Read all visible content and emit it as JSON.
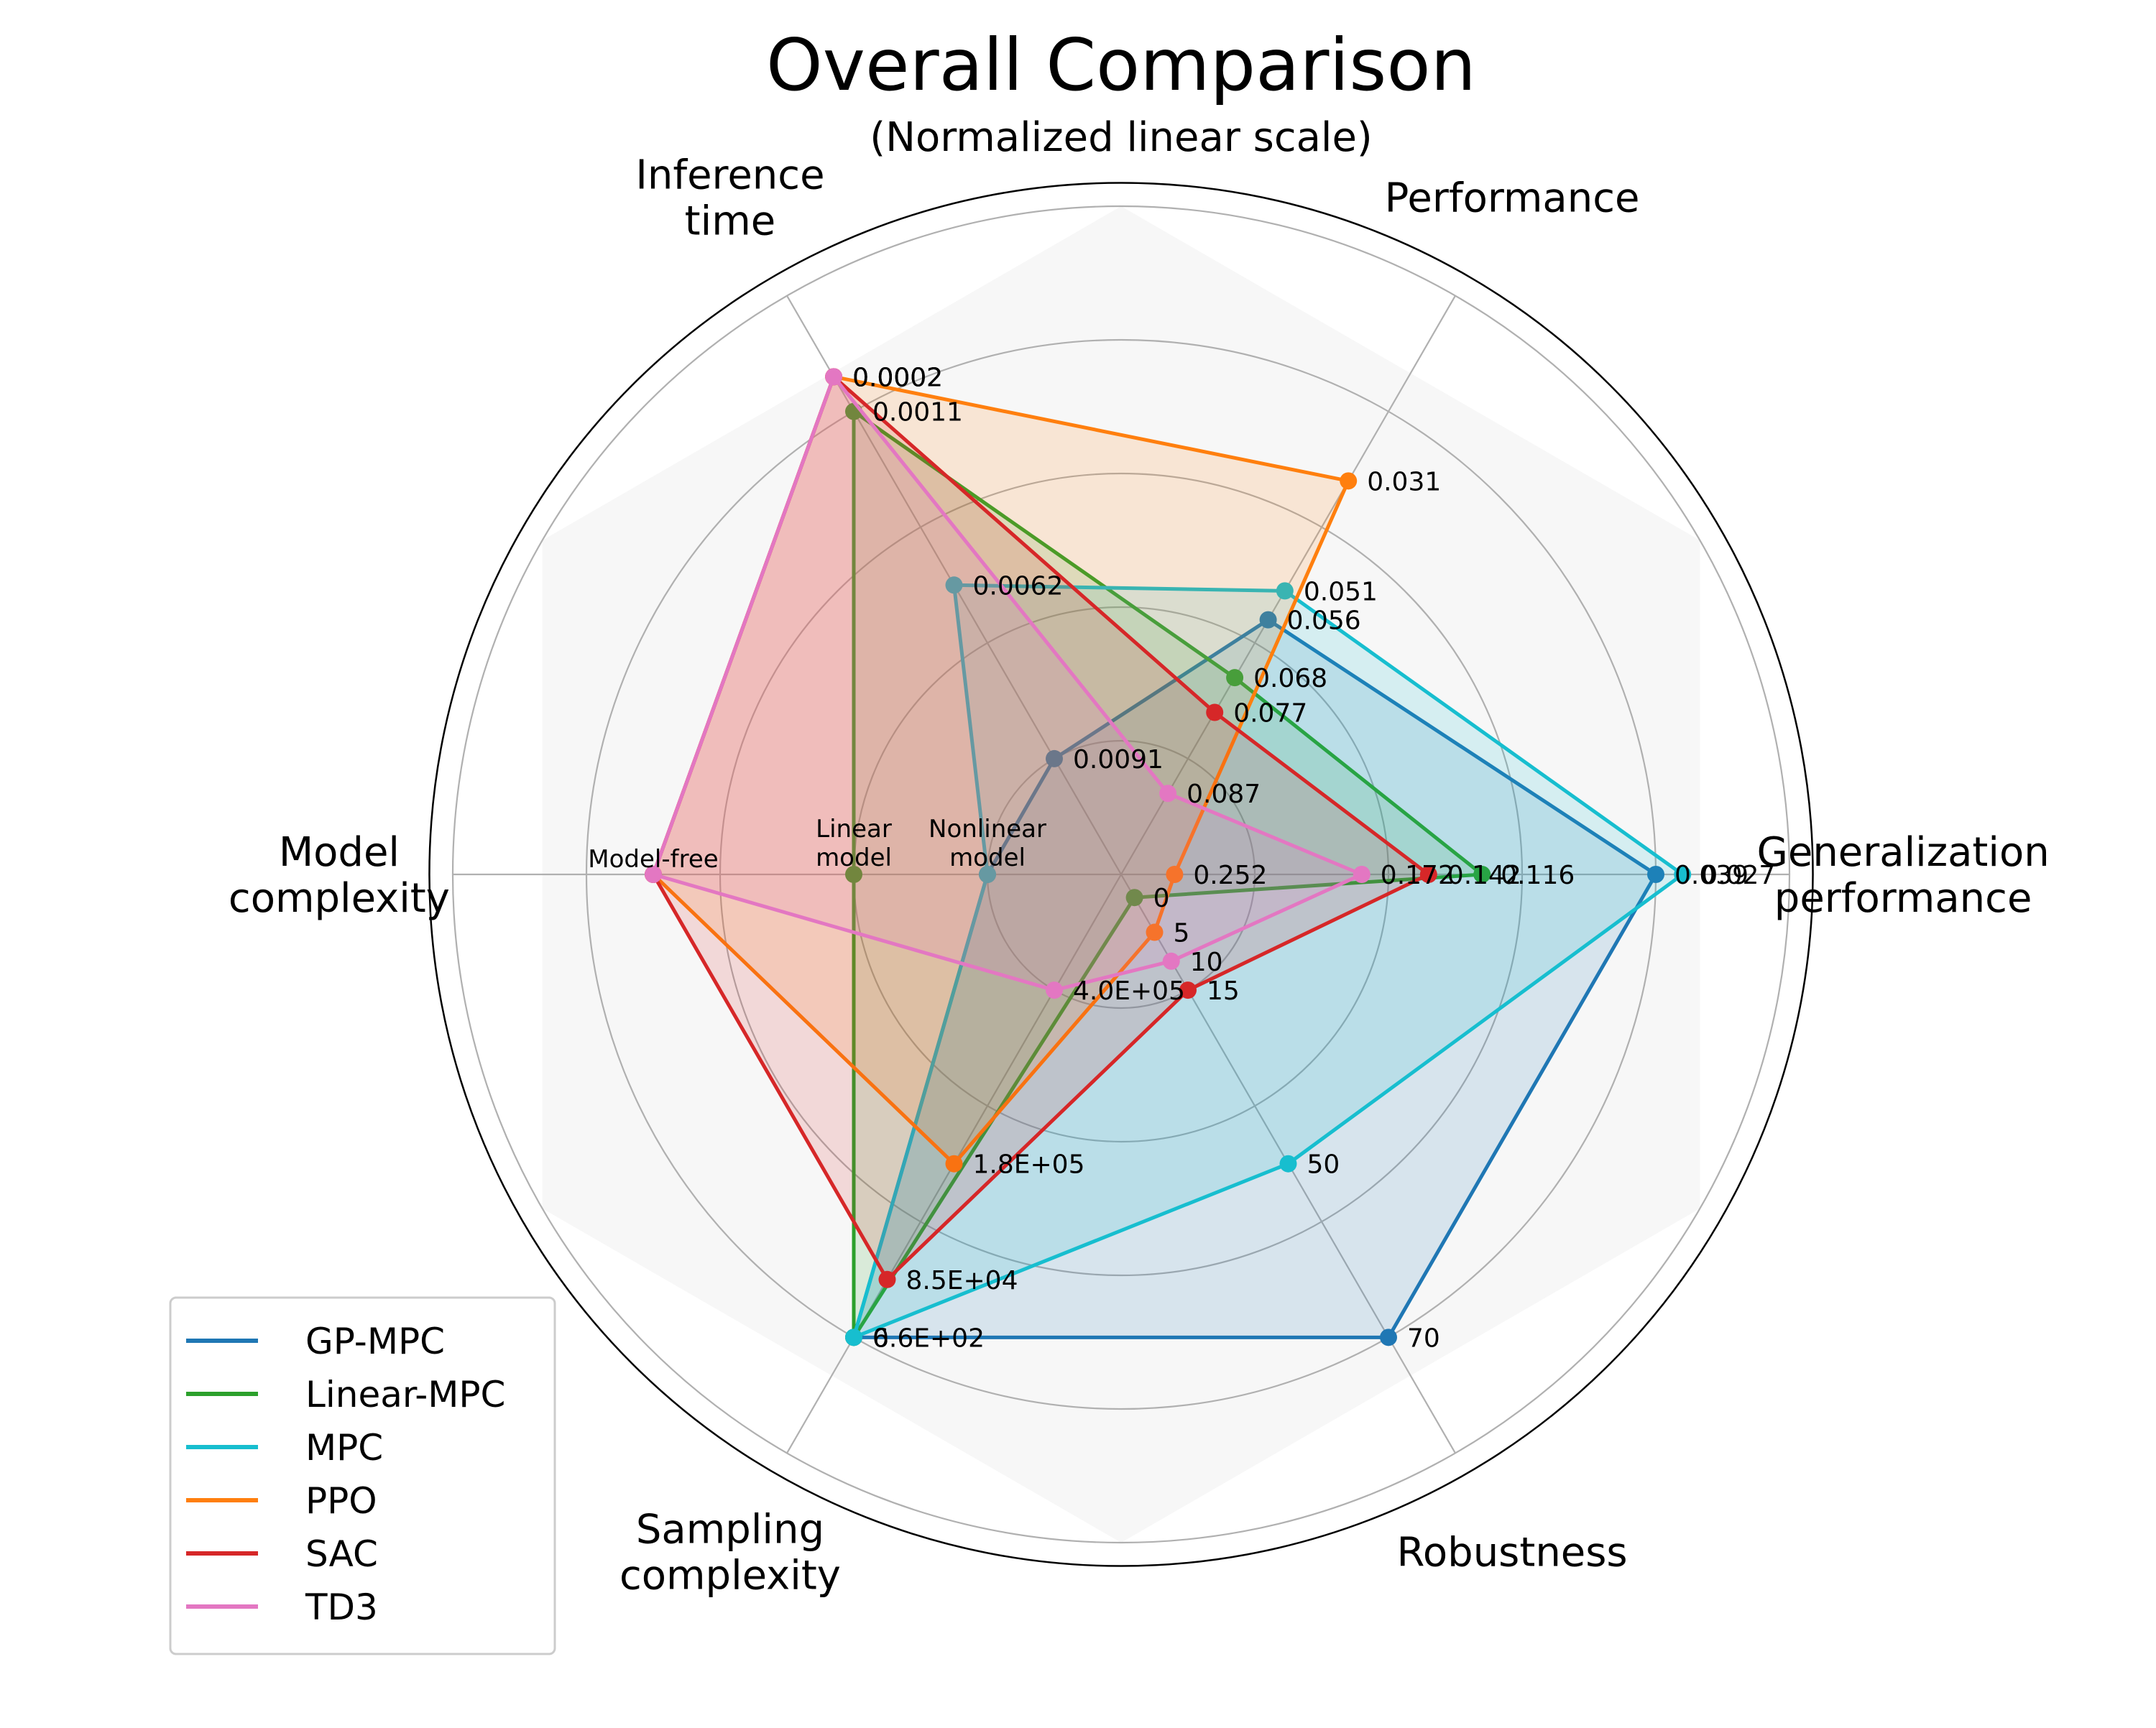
{
  "chart_data": {
    "type": "radar",
    "title": "Overall Comparison",
    "subtitle": "(Normalized linear scale)",
    "axes": [
      {
        "label": "Performance"
      },
      {
        "label": "Generalization\nperformance"
      },
      {
        "label": "Robustness"
      },
      {
        "label": "Sampling\ncomplexity"
      },
      {
        "label": "Model\ncomplexity"
      },
      {
        "label": "Inference\ntime"
      }
    ],
    "rlim": [
      0,
      5
    ],
    "grid": true,
    "legend_position": "lower-left",
    "series": [
      {
        "name": "GP-MPC",
        "color": "#1f77b4",
        "values": [
          2.2,
          4.0,
          4.0,
          4.0,
          1.0,
          1.0
        ],
        "labels": [
          "0.056",
          "0.039",
          "70",
          "0",
          "Nonlinear\nmodel",
          "0.0091"
        ]
      },
      {
        "name": "Linear-MPC",
        "color": "#2ca02c",
        "values": [
          1.7,
          2.7,
          0.2,
          4.0,
          2.0,
          4.0
        ],
        "labels": [
          "0.068",
          "0.116",
          "0",
          "6.6E+02",
          "Linear\nmodel",
          "0.0011"
        ]
      },
      {
        "name": "MPC",
        "color": "#17becf",
        "values": [
          2.45,
          4.2,
          2.5,
          4.0,
          1.0,
          2.5
        ],
        "labels": [
          "0.051",
          "0.027",
          "50",
          "0",
          "Nonlinear\nmodel",
          "0.0062"
        ]
      },
      {
        "name": "PPO",
        "color": "#ff7f0e",
        "values": [
          3.4,
          0.4,
          0.5,
          2.5,
          3.5,
          4.3
        ],
        "labels": [
          "0.031",
          "0.252",
          "5",
          "1.8E+05",
          "Model-free",
          "0.0002"
        ]
      },
      {
        "name": "SAC",
        "color": "#d62728",
        "values": [
          1.4,
          2.3,
          1.0,
          3.5,
          3.5,
          4.3
        ],
        "labels": [
          "0.077",
          "0.142",
          "15",
          "8.5E+04",
          "Model-free",
          "0.0002"
        ]
      },
      {
        "name": "TD3",
        "color": "#e377c2",
        "values": [
          0.7,
          1.8,
          0.75,
          1.0,
          3.5,
          4.3
        ],
        "labels": [
          "0.087",
          "0.172",
          "10",
          "4.0E+05",
          "Model-free",
          "0.0002"
        ]
      }
    ],
    "value_labels": [
      {
        "text": "0.031",
        "series": "PPO",
        "axis": 0
      },
      {
        "text": "0.051",
        "series": "MPC",
        "axis": 0
      },
      {
        "text": "0.056",
        "series": "GP-MPC",
        "axis": 0
      },
      {
        "text": "0.068",
        "series": "Linear-MPC",
        "axis": 0
      },
      {
        "text": "0.077",
        "series": "SAC",
        "axis": 0
      },
      {
        "text": "0.087",
        "series": "TD3",
        "axis": 0
      },
      {
        "text": "0.039",
        "series": "GP-MPC",
        "axis": 1
      },
      {
        "text": "0.027",
        "series": "MPC",
        "axis": 1
      },
      {
        "text": "0.116",
        "series": "Linear-MPC",
        "axis": 1
      },
      {
        "text": "0.142",
        "series": "SAC",
        "axis": 1
      },
      {
        "text": "0.172",
        "series": "TD3",
        "axis": 1
      },
      {
        "text": "0.252",
        "series": "PPO",
        "axis": 1
      },
      {
        "text": "0",
        "series": "Linear-MPC",
        "axis": 2
      },
      {
        "text": "5",
        "series": "PPO",
        "axis": 2
      },
      {
        "text": "10",
        "series": "TD3",
        "axis": 2
      },
      {
        "text": "15",
        "series": "SAC",
        "axis": 2
      },
      {
        "text": "50",
        "series": "MPC",
        "axis": 2
      },
      {
        "text": "70",
        "series": "GP-MPC",
        "axis": 2
      },
      {
        "text": "0",
        "series": "MPC",
        "axis": 3
      },
      {
        "text": "6.6E+02",
        "series": "Linear-MPC",
        "axis": 3
      },
      {
        "text": "8.5E+04",
        "series": "SAC",
        "axis": 3
      },
      {
        "text": "1.8E+05",
        "series": "PPO",
        "axis": 3
      },
      {
        "text": "4.0E+05",
        "series": "TD3",
        "axis": 3
      },
      {
        "text": "Nonlinear\nmodel",
        "series": "MPC",
        "axis": 4
      },
      {
        "text": "Linear\nmodel",
        "series": "Linear-MPC",
        "axis": 4
      },
      {
        "text": "Model-free",
        "series": "PPO",
        "axis": 4
      },
      {
        "text": "0.0002",
        "series": "PPO",
        "axis": 5
      },
      {
        "text": "0.0002",
        "series": "SAC",
        "axis": 5
      },
      {
        "text": "0.0002",
        "series": "TD3",
        "axis": 5
      },
      {
        "text": "0.0011",
        "series": "Linear-MPC",
        "axis": 5
      },
      {
        "text": "0.0062",
        "series": "MPC",
        "axis": 5
      },
      {
        "text": "0.0091",
        "series": "GP-MPC",
        "axis": 5
      }
    ]
  }
}
